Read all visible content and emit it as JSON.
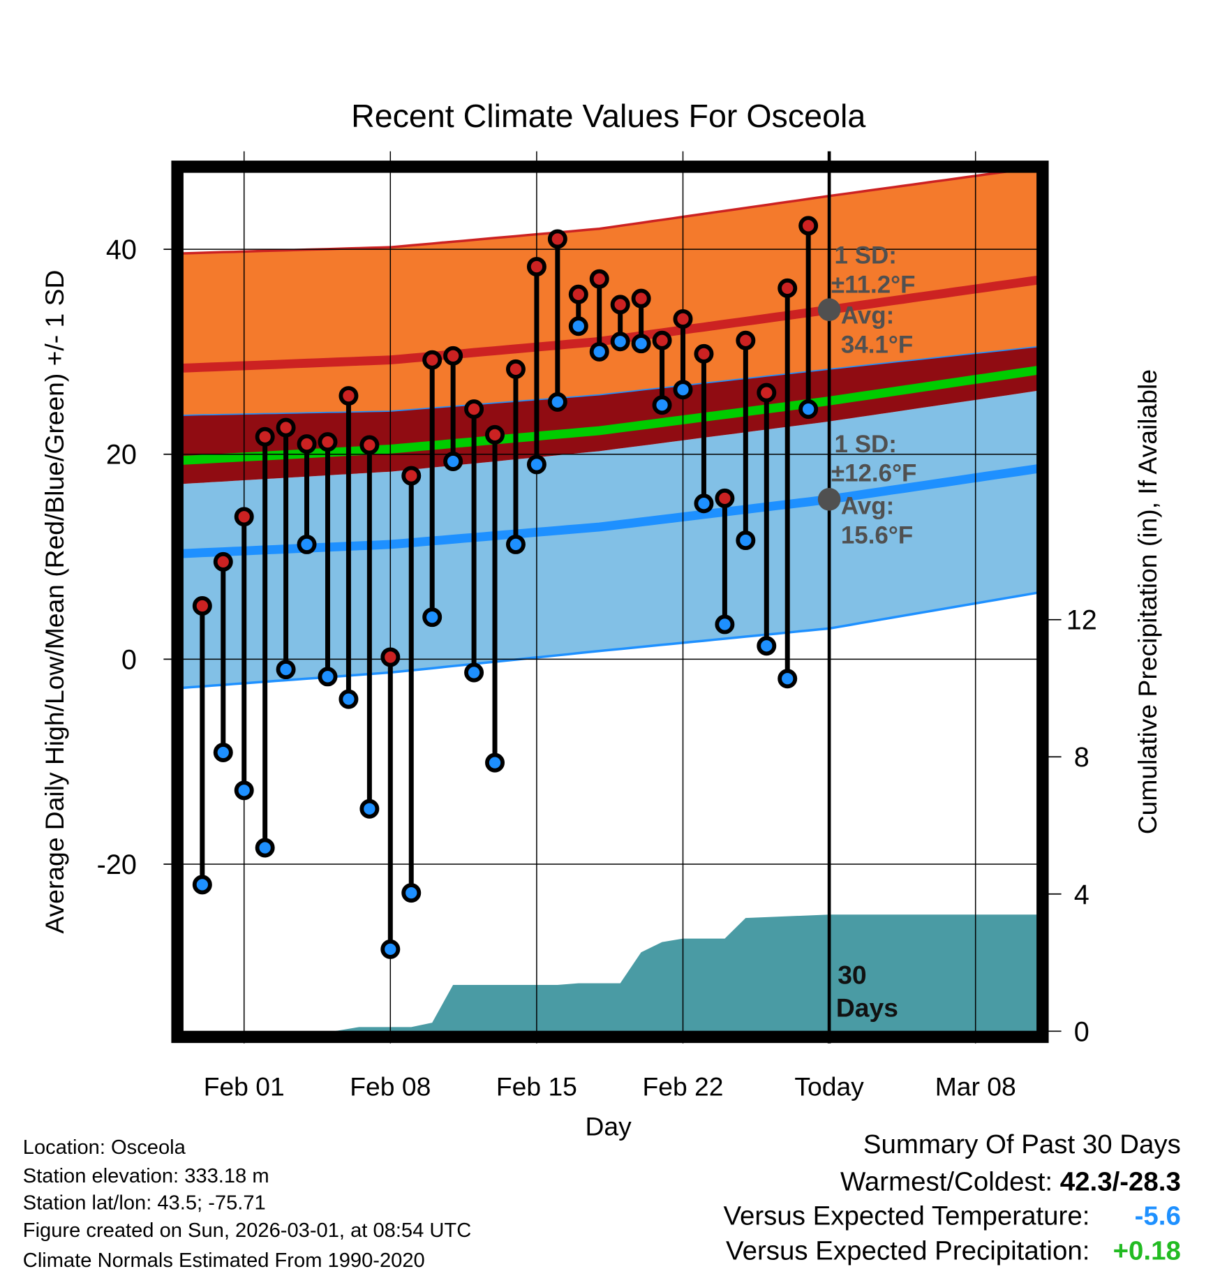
{
  "chart_data": {
    "type": "line",
    "title": "Recent Climate Values For Osceola",
    "xlabel": "Day",
    "ylabel": "Average Daily High/Low/Mean (Red/Blue/Green) +/- 1 SD",
    "y2label": "Cumulative Precipitation (in), If Available",
    "ylim": [
      -36.3,
      47.5
    ],
    "y2lim": [
      0,
      25
    ],
    "x_ticks": [
      {
        "day": 2,
        "label": "Feb 01"
      },
      {
        "day": 9,
        "label": "Feb 08"
      },
      {
        "day": 16,
        "label": "Feb 15"
      },
      {
        "day": 23,
        "label": "Feb 22"
      },
      {
        "day": 30,
        "label": "Today"
      },
      {
        "day": 37,
        "label": "Mar 08"
      }
    ],
    "y_ticks": [
      40,
      20,
      0,
      -20
    ],
    "y_minor_ticks": [
      30,
      10,
      -10,
      -30
    ],
    "y2_ticks": [
      0,
      4,
      8,
      12
    ],
    "day_axis_note": "day 0 = Jan 30",
    "highs": [
      5.2,
      9.5,
      13.9,
      21.7,
      22.6,
      21.0,
      21.2,
      25.7,
      20.9,
      0.2,
      17.9,
      29.2,
      29.6,
      24.4,
      21.9,
      28.3,
      38.3,
      41.0,
      35.6,
      37.1,
      34.6,
      35.2,
      31.1,
      33.2,
      29.8,
      15.7,
      31.1,
      26.0,
      36.2,
      42.3
    ],
    "lows": [
      -22.0,
      -9.1,
      -12.8,
      -18.4,
      -1.0,
      11.2,
      -1.7,
      -3.9,
      -14.6,
      -28.3,
      -22.8,
      4.1,
      19.3,
      -1.3,
      -10.1,
      11.2,
      19.0,
      25.1,
      32.5,
      30.0,
      31.0,
      30.8,
      24.8,
      26.3,
      15.2,
      3.4,
      11.6,
      1.3,
      -1.9,
      24.4
    ],
    "normals": {
      "days": [
        -1,
        9,
        19,
        30,
        40
      ],
      "high_upper": [
        39.6,
        40.2,
        42.0,
        45.2,
        48.0
      ],
      "high_mean": [
        28.4,
        29.2,
        31.0,
        34.1,
        37.0
      ],
      "high_lower": [
        23.8,
        24.2,
        25.8,
        28.3,
        30.5
      ],
      "mean": [
        19.4,
        20.5,
        22.3,
        25.2,
        28.2
      ],
      "low_upper": [
        17.1,
        18.3,
        20.3,
        23.2,
        26.2
      ],
      "low_mean": [
        10.3,
        11.2,
        12.9,
        15.6,
        18.6
      ],
      "low_lower": [
        -2.8,
        -1.3,
        0.8,
        3.0,
        6.5
      ]
    },
    "precip_cumulative": [
      [
        -1,
        0
      ],
      [
        6.3,
        0
      ],
      [
        7.5,
        0.12
      ],
      [
        10,
        0.12
      ],
      [
        11,
        0.25
      ],
      [
        12,
        1.35
      ],
      [
        17,
        1.35
      ],
      [
        18,
        1.4
      ],
      [
        20,
        1.4
      ],
      [
        21,
        2.3
      ],
      [
        22,
        2.6
      ],
      [
        23,
        2.7
      ],
      [
        25,
        2.7
      ],
      [
        26,
        3.3
      ],
      [
        30,
        3.4
      ],
      [
        40,
        3.4
      ]
    ],
    "annotations": {
      "high_sd_label": "1 SD:",
      "high_sd_value": "±11.2°F",
      "high_avg_label": "Avg:",
      "high_avg_value": "34.1°F",
      "high_avg": 34.1,
      "low_sd_label": "1 SD:",
      "low_sd_value": "±12.6°F",
      "low_avg_label": "Avg:",
      "low_avg_value": "15.6°F",
      "low_avg": 15.6,
      "days_label_1": "30",
      "days_label_2": "Days"
    },
    "colors": {
      "high_band": "#f47a2c",
      "high_line": "#cc2222",
      "low_band": "#82c0e6",
      "low_line": "#1e90ff",
      "overlap": "#900c12",
      "mean_line": "#00cc00",
      "precip": "#4a9ba4"
    }
  },
  "info": {
    "location": "Location: Osceola",
    "elevation": "Station elevation: 333.18 m",
    "latlon": "Station lat/lon: 43.5; -75.71",
    "created": "Figure created on Sun, 2026-03-01, at 08:54 UTC",
    "normals": "Climate Normals Estimated From 1990-2020"
  },
  "summary": {
    "title": "Summary Of Past 30 Days",
    "warmest_label": "Warmest/Coldest: ",
    "warmest_value": "42.3/-28.3",
    "temp_label": "Versus Expected Temperature:",
    "temp_value": "-5.6",
    "temp_color": "#1e90ff",
    "precip_label": "Versus Expected Precipitation:",
    "precip_value": "+0.18",
    "precip_color": "#22bb22"
  }
}
